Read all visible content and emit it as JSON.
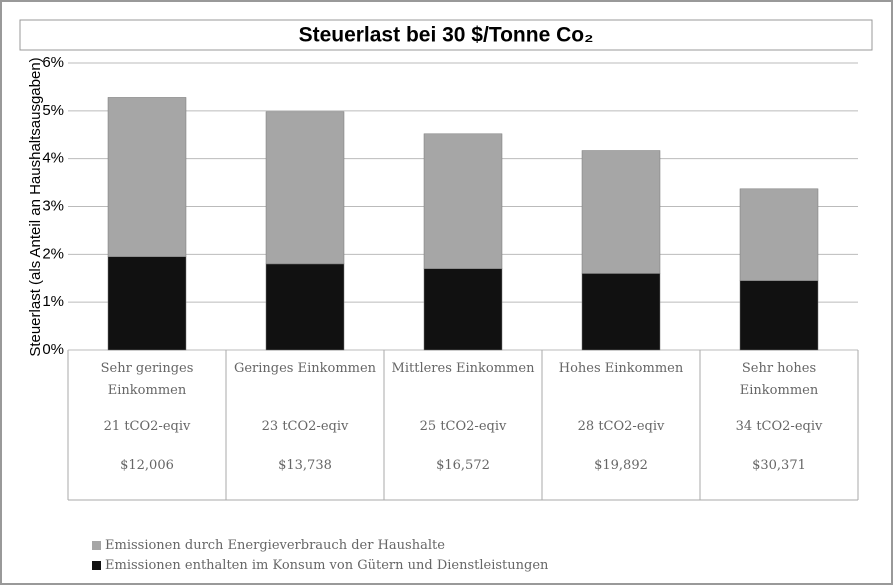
{
  "chart_data": {
    "type": "bar",
    "stacked": true,
    "title": "Steuerlast bei 30 $/Tonne Co₂",
    "ylabel": "Steuerlast (als Anteil an Haushaltsausgaben)",
    "categories": [
      "Sehr geringes Einkommen",
      "Geringes Einkommen",
      "Mittleres Einkommen",
      "Hohes Einkommen",
      "Sehr hohes Einkommen"
    ],
    "emissions": [
      "21 tCO2-eqiv",
      "23 tCO2-eqiv",
      "25 tCO2-eqiv",
      "28 tCO2-eqiv",
      "34 tCO2-eqiv"
    ],
    "incomes": [
      "$12,006",
      "$13,738",
      "$16,572",
      "$19,892",
      "$30,371"
    ],
    "series": [
      {
        "name": "Emissionen enthalten im Konsum von Gütern und Dienstleistungen",
        "color": "#111111",
        "values": [
          1.95,
          1.8,
          1.7,
          1.6,
          1.45
        ]
      },
      {
        "name": "Emissionen durch Energieverbrauch der Haushalte",
        "color": "#a6a6a6",
        "values": [
          3.33,
          3.18,
          2.82,
          2.57,
          1.92
        ]
      }
    ],
    "ylim": [
      0,
      6
    ],
    "yticks": [
      {
        "value": 0,
        "label": "0%"
      },
      {
        "value": 1,
        "label": "1%"
      },
      {
        "value": 2,
        "label": "2%"
      },
      {
        "value": 3,
        "label": "3%"
      },
      {
        "value": 4,
        "label": "4%"
      },
      {
        "value": 5,
        "label": "5%"
      },
      {
        "value": 6,
        "label": "6%"
      }
    ],
    "grid": true
  }
}
